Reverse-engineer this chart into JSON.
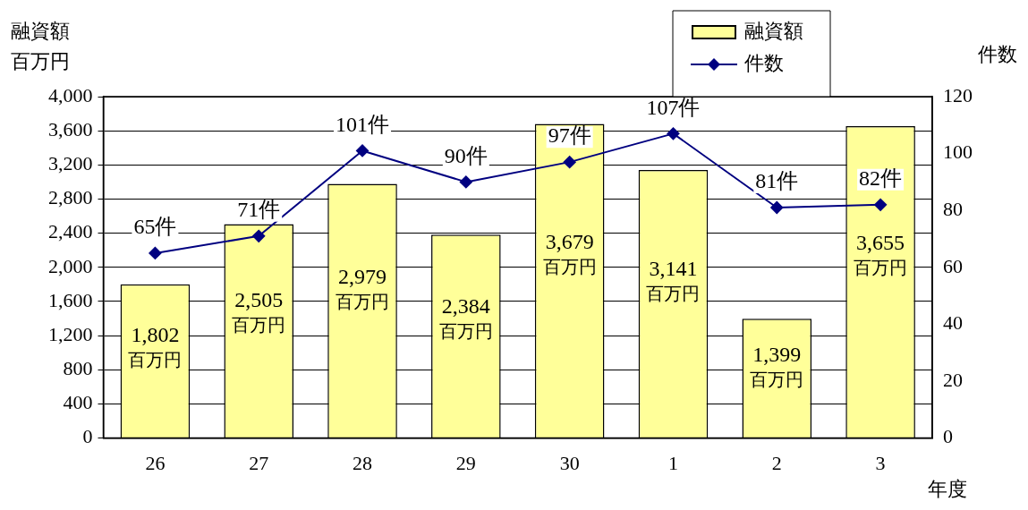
{
  "chart_data": {
    "type": "bar",
    "xlabel": "年度",
    "ylabel": "融資額百万円",
    "y2label": "件数",
    "categories": [
      "26",
      "27",
      "28",
      "29",
      "30",
      "1",
      "2",
      "3"
    ],
    "series": [
      {
        "name": "融資額",
        "color": "#ffff99",
        "values": [
          1802,
          2505,
          2979,
          2384,
          3679,
          3141,
          1399,
          3655
        ],
        "value_labels": [
          "1,802\n百万円",
          "2,505\n百万円",
          "2,979\n百万円",
          "2,384\n百万円",
          "3,679\n百万円",
          "3,141\n百万円",
          "1,399\n百万円",
          "3,655\n百万円"
        ]
      },
      {
        "name": "件数",
        "type": "line",
        "axis": "y2",
        "color": "#000080",
        "marker": "diamond",
        "values": [
          65,
          71,
          101,
          90,
          97,
          107,
          81,
          82
        ],
        "value_labels": [
          "65件",
          "71件",
          "101件",
          "90件",
          "97件",
          "107件",
          "81件",
          "82件"
        ]
      }
    ],
    "ylim": [
      0,
      4000
    ],
    "yticks": [
      0,
      400,
      800,
      {
        "value": 1200,
        "label": "1,200"
      },
      {
        "value": 1600,
        "label": "1,600"
      },
      {
        "value": 2000,
        "label": "2,000"
      },
      {
        "value": 2400,
        "label": "2,400"
      },
      {
        "value": 2800,
        "label": "2,800"
      },
      {
        "value": 3200,
        "label": "3,200"
      },
      {
        "value": 3600,
        "label": "3,600"
      },
      {
        "value": 4000,
        "label": "4,000"
      }
    ],
    "y2lim": [
      0,
      120
    ],
    "y2ticks": [
      0,
      20,
      40,
      60,
      80,
      100,
      120
    ],
    "grid": "y",
    "legend": "top right"
  }
}
